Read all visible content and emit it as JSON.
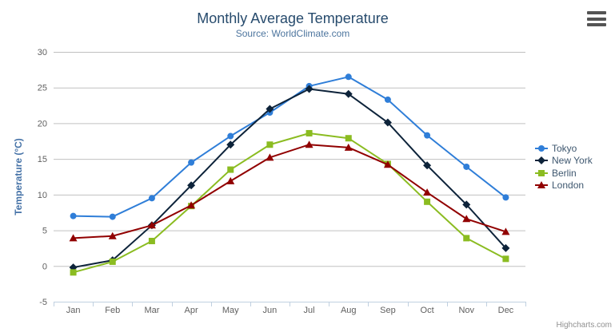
{
  "header": {
    "title": "Monthly Average Temperature",
    "subtitle": "Source: WorldClimate.com"
  },
  "credits": {
    "label": "Highcharts.com"
  },
  "export_menu": {
    "icon": "hamburger-menu-icon"
  },
  "colors": {
    "title": "#274b6d",
    "subtitle": "#4d759e",
    "axis_labels": "#606060",
    "y_axis_title": "#4572a7",
    "gridline": "#c0c0c0",
    "x_axis_line": "#c0d0e0",
    "legend_text": "#3e576f",
    "credits_text": "#909090"
  },
  "chart_data": {
    "type": "line",
    "title": "Monthly Average Temperature",
    "subtitle": "Source: WorldClimate.com",
    "categories": [
      "Jan",
      "Feb",
      "Mar",
      "Apr",
      "May",
      "Jun",
      "Jul",
      "Aug",
      "Sep",
      "Oct",
      "Nov",
      "Dec"
    ],
    "xlabel": "",
    "ylabel": "Temperature (°C)",
    "ylim": [
      -5,
      30
    ],
    "yticks": [
      -5,
      0,
      5,
      10,
      15,
      20,
      25,
      30
    ],
    "grid": true,
    "legend_position": "right",
    "series": [
      {
        "name": "Tokyo",
        "color": "#2f7ed8",
        "marker": "circle",
        "values": [
          7.0,
          6.9,
          9.5,
          14.5,
          18.2,
          21.5,
          25.2,
          26.5,
          23.3,
          18.3,
          13.9,
          9.6
        ]
      },
      {
        "name": "New York",
        "color": "#0d233a",
        "marker": "diamond",
        "values": [
          -0.2,
          0.8,
          5.7,
          11.3,
          17.0,
          22.0,
          24.8,
          24.1,
          20.1,
          14.1,
          8.6,
          2.5
        ]
      },
      {
        "name": "Berlin",
        "color": "#8bbc21",
        "marker": "square",
        "values": [
          -0.9,
          0.6,
          3.5,
          8.4,
          13.5,
          17.0,
          18.6,
          17.9,
          14.3,
          9.0,
          3.9,
          1.0
        ]
      },
      {
        "name": "London",
        "color": "#910000",
        "marker": "triangle",
        "values": [
          3.9,
          4.2,
          5.7,
          8.5,
          11.9,
          15.2,
          17.0,
          16.6,
          14.2,
          10.3,
          6.6,
          4.8
        ]
      }
    ]
  }
}
